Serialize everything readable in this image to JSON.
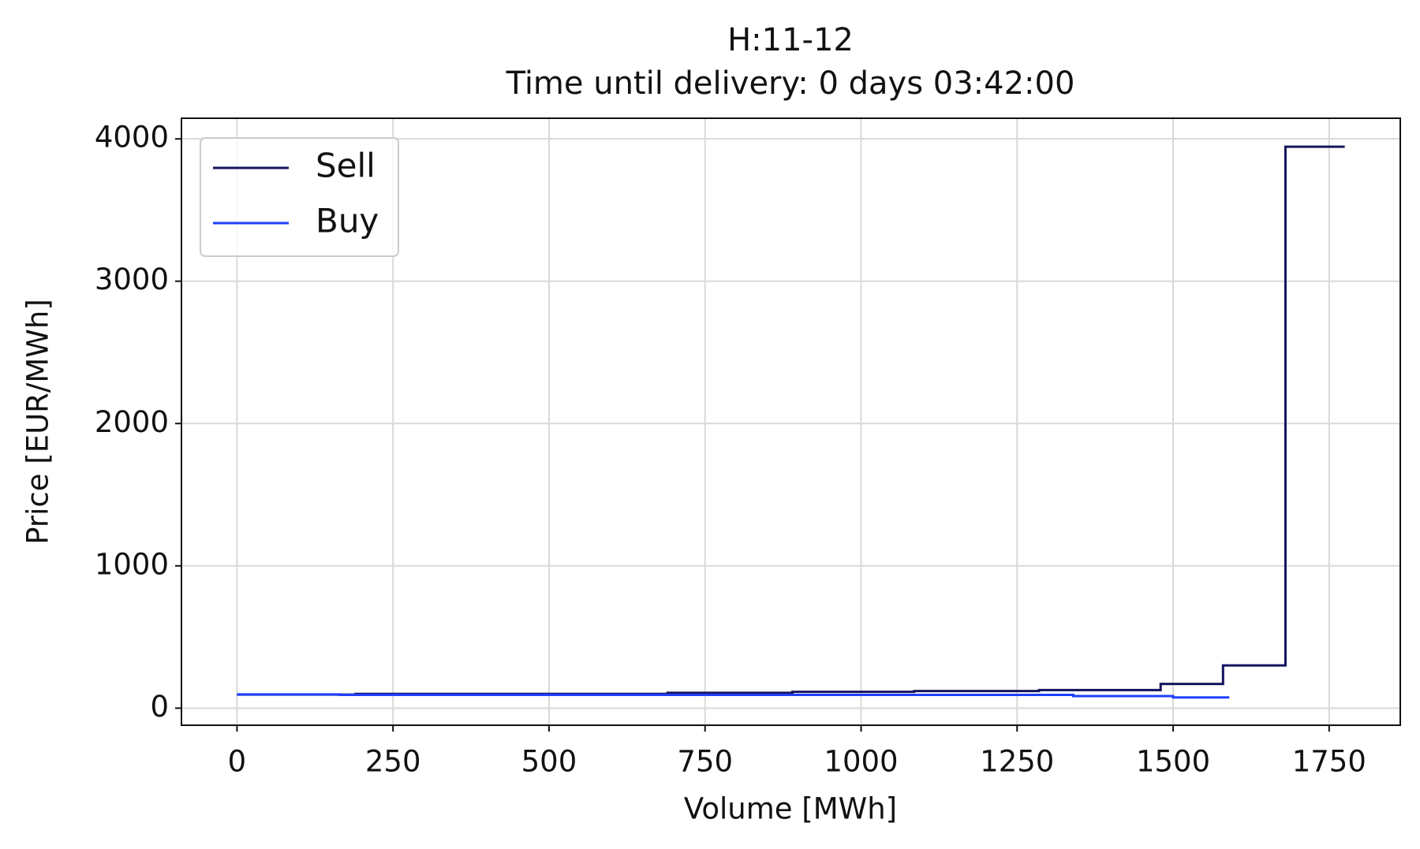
{
  "chart_data": {
    "type": "step",
    "title": "H:11-12",
    "subtitle": "Time until delivery: 0 days 03:42:00",
    "xlabel": "Volume [MWh]",
    "ylabel": "Price [EUR/MWh]",
    "xlim": [
      -89,
      1864
    ],
    "xticks": [
      0,
      250,
      500,
      750,
      1000,
      1250,
      1500,
      1750
    ],
    "ylim": [
      -120,
      4145
    ],
    "yticks": [
      0,
      1000,
      2000,
      3000,
      4000
    ],
    "grid": true,
    "legend": "upper left",
    "series": [
      {
        "name": "Sell",
        "color": "#14145e",
        "x": [
          0,
          190,
          690,
          890,
          1085,
          1285,
          1480,
          1580,
          1680,
          1775
        ],
        "values": [
          95,
          100,
          108,
          115,
          120,
          127,
          170,
          300,
          3945,
          3945
        ]
      },
      {
        "name": "Buy",
        "color": "#1f3fff",
        "x": [
          0,
          165,
          1340,
          1500,
          1590
        ],
        "values": [
          97,
          93,
          85,
          75,
          75
        ]
      }
    ]
  }
}
